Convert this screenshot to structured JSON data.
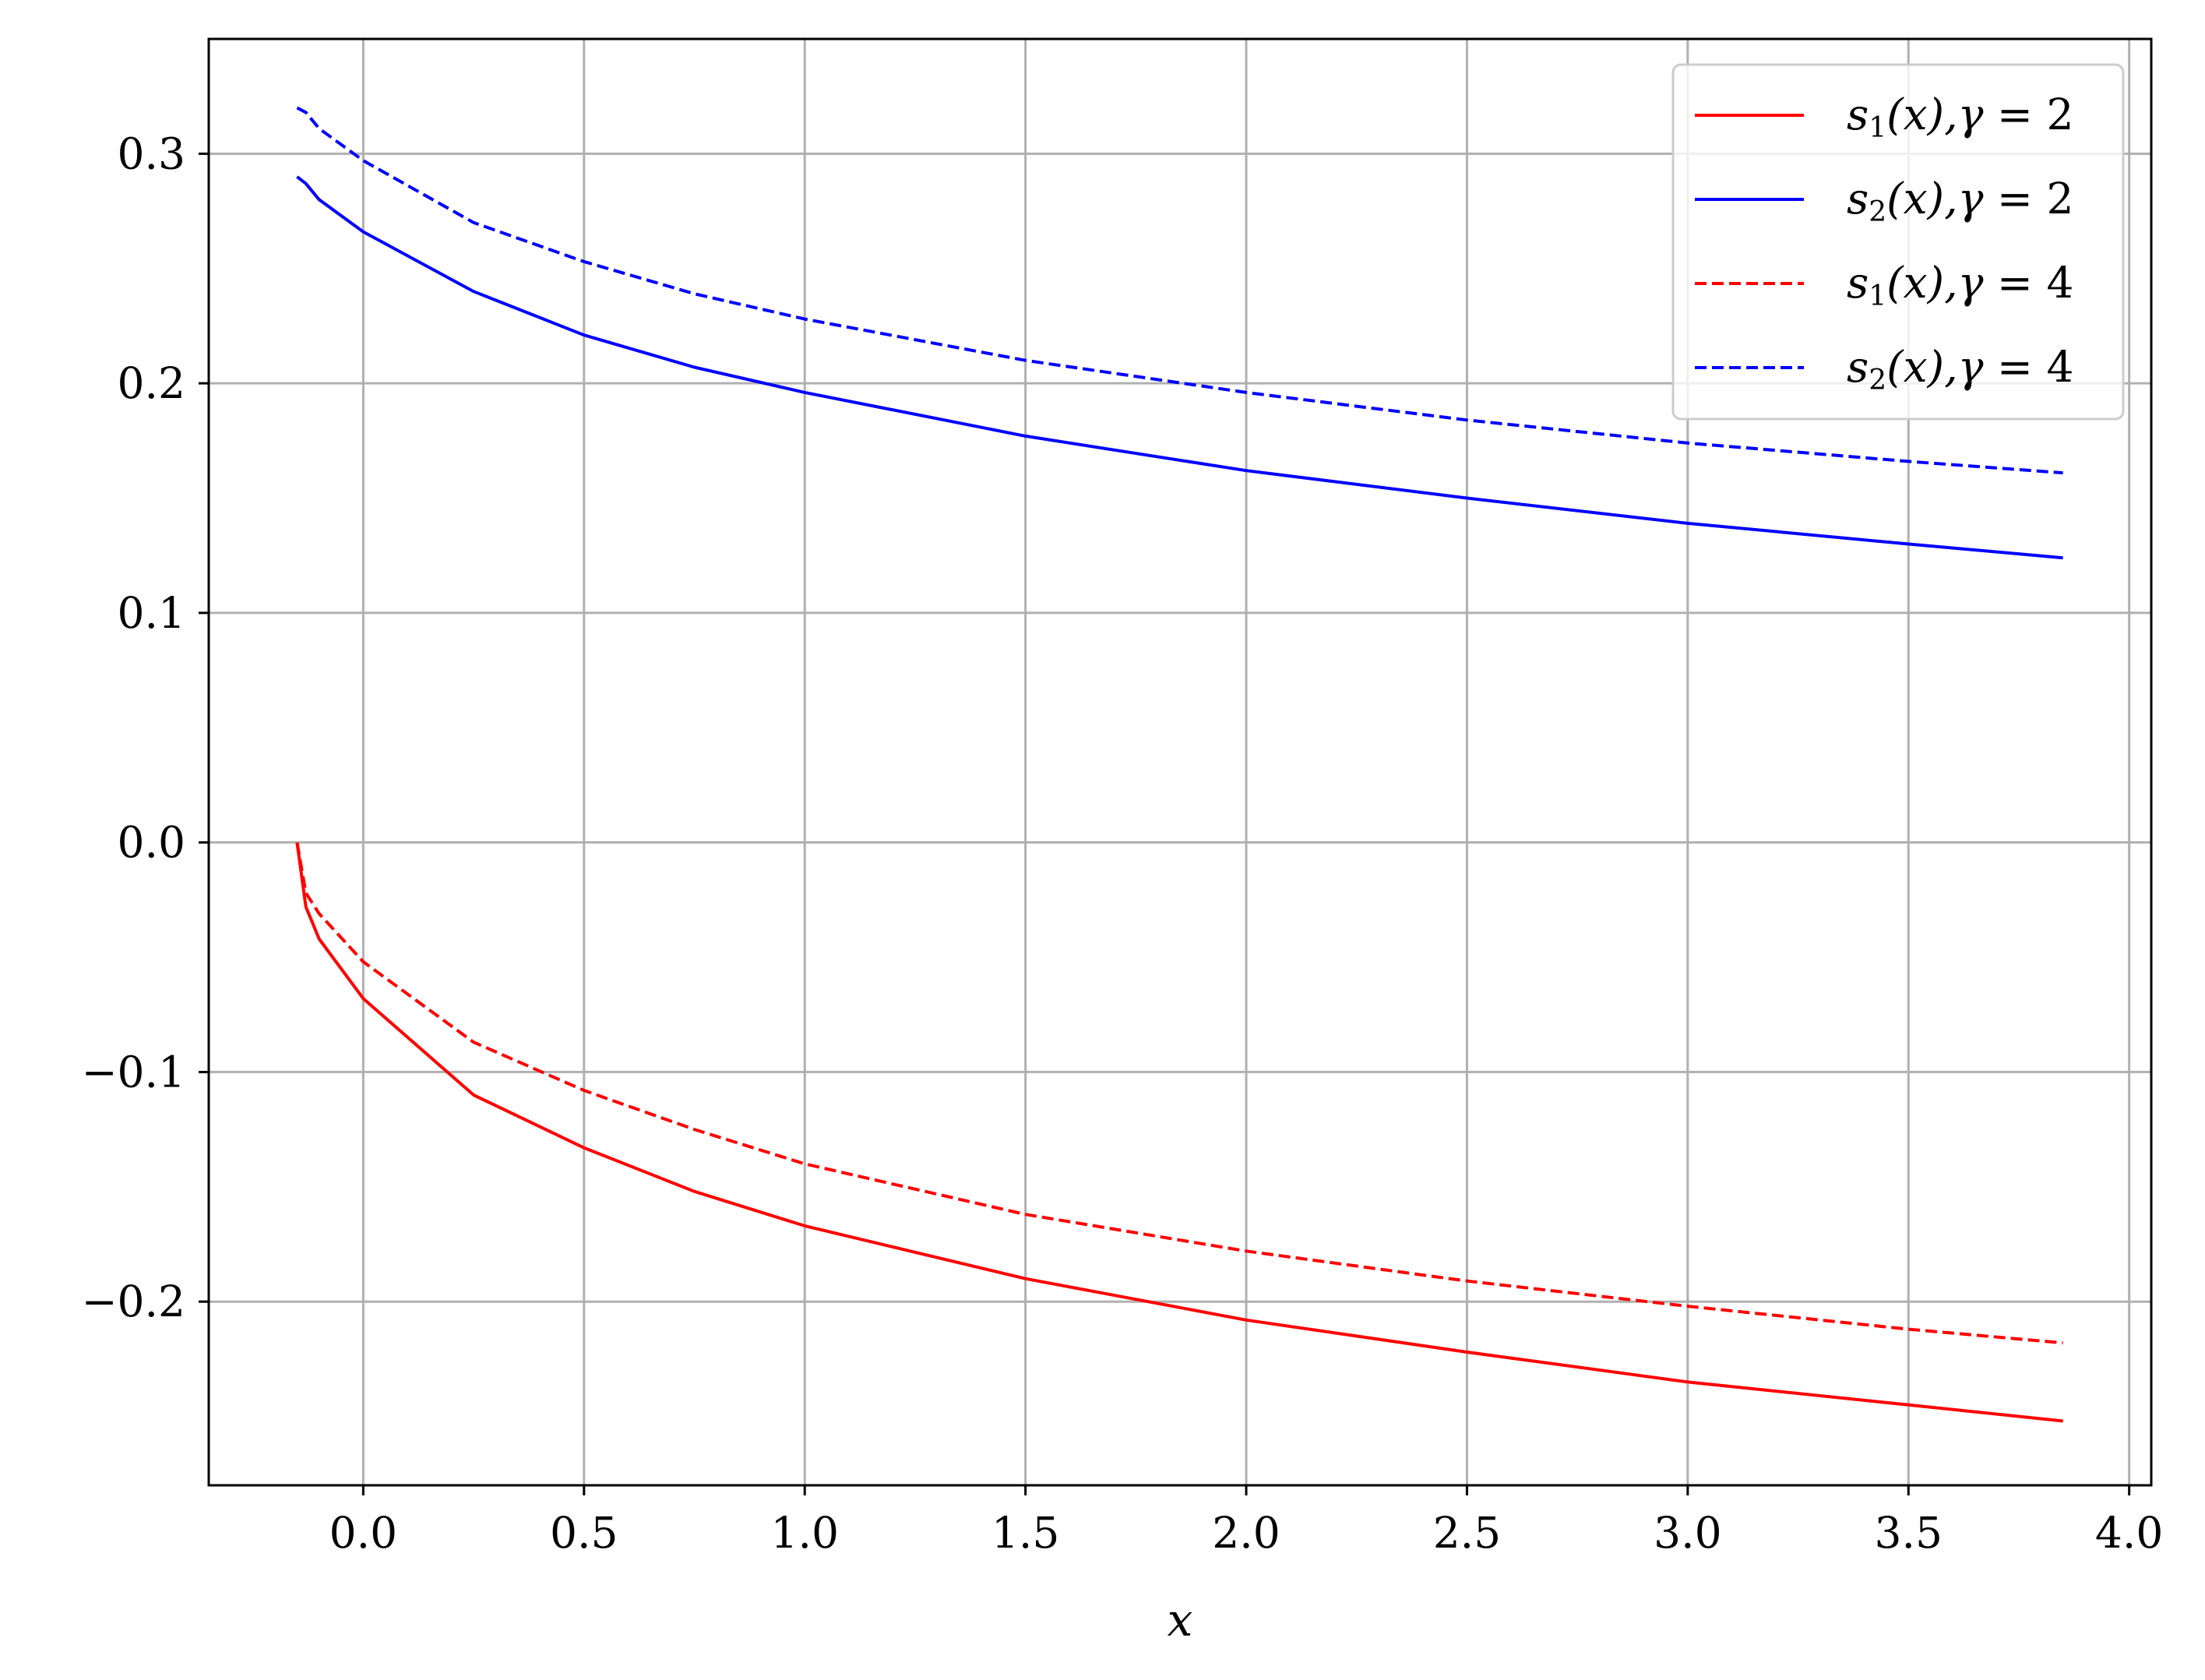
{
  "chart_data": {
    "type": "line",
    "title": "",
    "xlabel": "x",
    "ylabel": "",
    "xlim": [
      -0.35,
      4.05
    ],
    "ylim": [
      -0.28,
      0.35
    ],
    "grid": true,
    "legend_position": "top-right",
    "x_ticks": [
      0.0,
      0.5,
      1.0,
      1.5,
      2.0,
      2.5,
      3.0,
      3.5,
      4.0
    ],
    "x_tick_labels": [
      "0.0",
      "0.5",
      "1.0",
      "1.5",
      "2.0",
      "2.5",
      "3.0",
      "3.5",
      "4.0"
    ],
    "y_ticks": [
      -0.2,
      -0.1,
      0.0,
      0.1,
      0.2,
      0.3
    ],
    "y_tick_labels": [
      "−0.2",
      "−0.1",
      "0.0",
      "0.1",
      "0.2",
      "0.3"
    ],
    "x": [
      -0.15,
      -0.13,
      -0.1,
      0.0,
      0.25,
      0.5,
      0.75,
      1.0,
      1.5,
      2.0,
      2.5,
      3.0,
      3.5,
      3.85
    ],
    "series": [
      {
        "name": "s1(x), γ=2",
        "color": "#ff0000",
        "dash": "solid",
        "values": [
          0.0,
          -0.028,
          -0.042,
          -0.068,
          -0.11,
          -0.133,
          -0.152,
          -0.167,
          -0.19,
          -0.208,
          -0.222,
          -0.235,
          -0.245,
          -0.252
        ],
        "legend": {
          "base": "s",
          "sub": "1",
          "arg": "(x),",
          "greek": "γ",
          "eq": " = 2"
        }
      },
      {
        "name": "s2(x), γ=2",
        "color": "#0000ff",
        "dash": "solid",
        "values": [
          0.29,
          0.287,
          0.28,
          0.266,
          0.24,
          0.221,
          0.207,
          0.196,
          0.177,
          0.162,
          0.15,
          0.139,
          0.13,
          0.124
        ],
        "legend": {
          "base": "s",
          "sub": "2",
          "arg": "(x),",
          "greek": "γ",
          "eq": " = 2"
        }
      },
      {
        "name": "s1(x), γ=4",
        "color": "#ff0000",
        "dash": "dashed",
        "values": [
          0.0,
          -0.022,
          -0.031,
          -0.052,
          -0.087,
          -0.108,
          -0.125,
          -0.14,
          -0.162,
          -0.178,
          -0.191,
          -0.202,
          -0.212,
          -0.218
        ],
        "legend": {
          "base": "s",
          "sub": "1",
          "arg": "(x),",
          "greek": "γ",
          "eq": " = 4"
        }
      },
      {
        "name": "s2(x), γ=4",
        "color": "#0000ff",
        "dash": "dashed",
        "values": [
          0.32,
          0.318,
          0.311,
          0.297,
          0.27,
          0.253,
          0.239,
          0.228,
          0.21,
          0.196,
          0.184,
          0.174,
          0.166,
          0.161
        ],
        "legend": {
          "base": "s",
          "sub": "2",
          "arg": "(x),",
          "greek": "γ",
          "eq": " = 4"
        }
      }
    ]
  }
}
